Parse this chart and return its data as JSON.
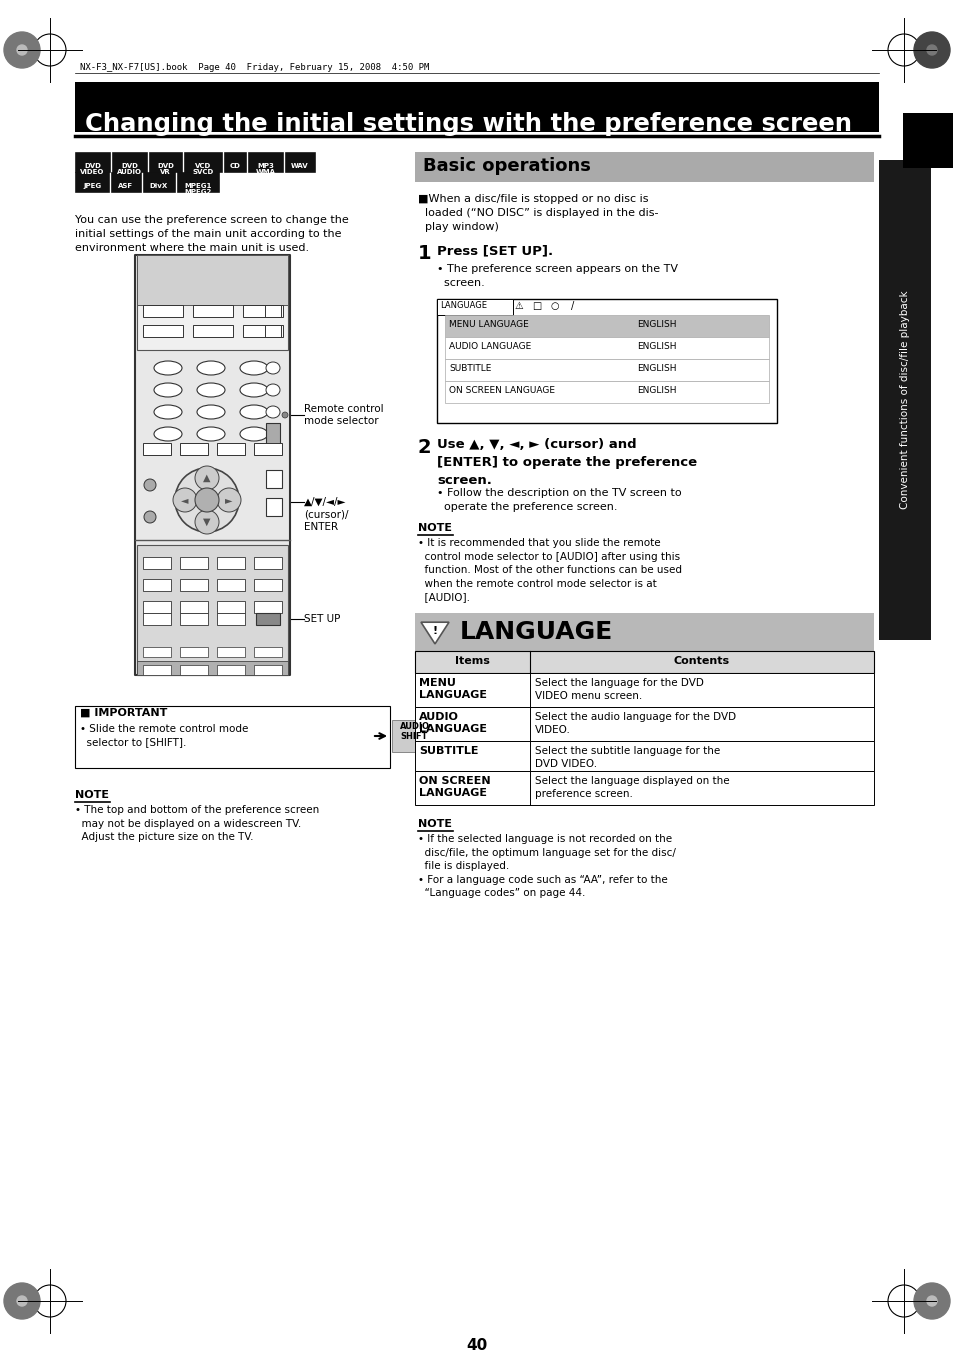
{
  "page_title": "Changing the initial settings with the preference screen",
  "header_note": "NX-F3_NX-F7[US].book  Page 40  Friday, February 15, 2008  4:50 PM",
  "left_body": "You can use the preference screen to change the\ninitial settings of the main unit according to the\nenvironment where the main unit is used.",
  "important_label": "■ IMPORTANT",
  "important_text": "• Slide the remote control mode\n  selector to [SHIFT].",
  "note_label_left": "NOTE",
  "note_text_left": "• The top and bottom of the preference screen\n  may not be displayed on a widescreen TV.\n  Adjust the picture size on the TV.",
  "rc_label_mode": "Remote control\nmode selector",
  "rc_label_cursor": "▲/▼/◄/►\n(cursor)/\nENTER",
  "rc_label_setup": "SET UP",
  "basic_ops_title": "Basic operations",
  "basic_ops_intro": "■When a disc/file is stopped or no disc is\n  loaded (“NO DISC” is displayed in the dis-\n  play window)",
  "step1_num": "1",
  "step1_title": "Press [SET UP].",
  "step1_bullet": "• The preference screen appears on the TV\n  screen.",
  "tv_screen_rows": [
    "MENU LANGUAGE",
    "AUDIO LANGUAGE",
    "SUBTITLE",
    "ON SCREEN LANGUAGE"
  ],
  "tv_screen_vals": [
    "ENGLISH",
    "ENGLISH",
    "ENGLISH",
    "ENGLISH"
  ],
  "step2_num": "2",
  "step2_title": "Use ▲, ▼, ◄, ► (cursor) and\n[ENTER] to operate the preference\nscreen.",
  "step2_bullet": "• Follow the description on the TV screen to\n  operate the preference screen.",
  "note2_label": "NOTE",
  "note2_text": "• It is recommended that you slide the remote\n  control mode selector to [AUDIO] after using this\n  function. Most of the other functions can be used\n  when the remote control mode selector is at\n  [AUDIO].",
  "lang_section_title": "LANGUAGE",
  "lang_table_items": [
    "MENU\nLANGUAGE",
    "AUDIO\nLANGUAGE",
    "SUBTITLE",
    "ON SCREEN\nLANGUAGE"
  ],
  "lang_table_contents": [
    "Select the language for the DVD\nVIDEO menu screen.",
    "Select the audio language for the DVD\nVIDEO.",
    "Select the subtitle language for the\nDVD VIDEO.",
    "Select the language displayed on the\npreference screen."
  ],
  "note3_label": "NOTE",
  "note3_text": "• If the selected language is not recorded on the\n  disc/file, the optimum language set for the disc/\n  file is displayed.\n• For a language code such as “AA”, refer to the\n  “Language codes” on page 44.",
  "sidebar_text": "Convenient functions of disc/file playback",
  "page_number": "40",
  "bg_color": "#ffffff",
  "title_bg": "#000000",
  "basic_ops_bg": "#aaaaaa",
  "lang_bg": "#b8b8b8",
  "table_header_bg": "#d8d8d8",
  "sidebar_bg": "#1a1a1a",
  "tv_highlight_row": "#c0c0c0"
}
